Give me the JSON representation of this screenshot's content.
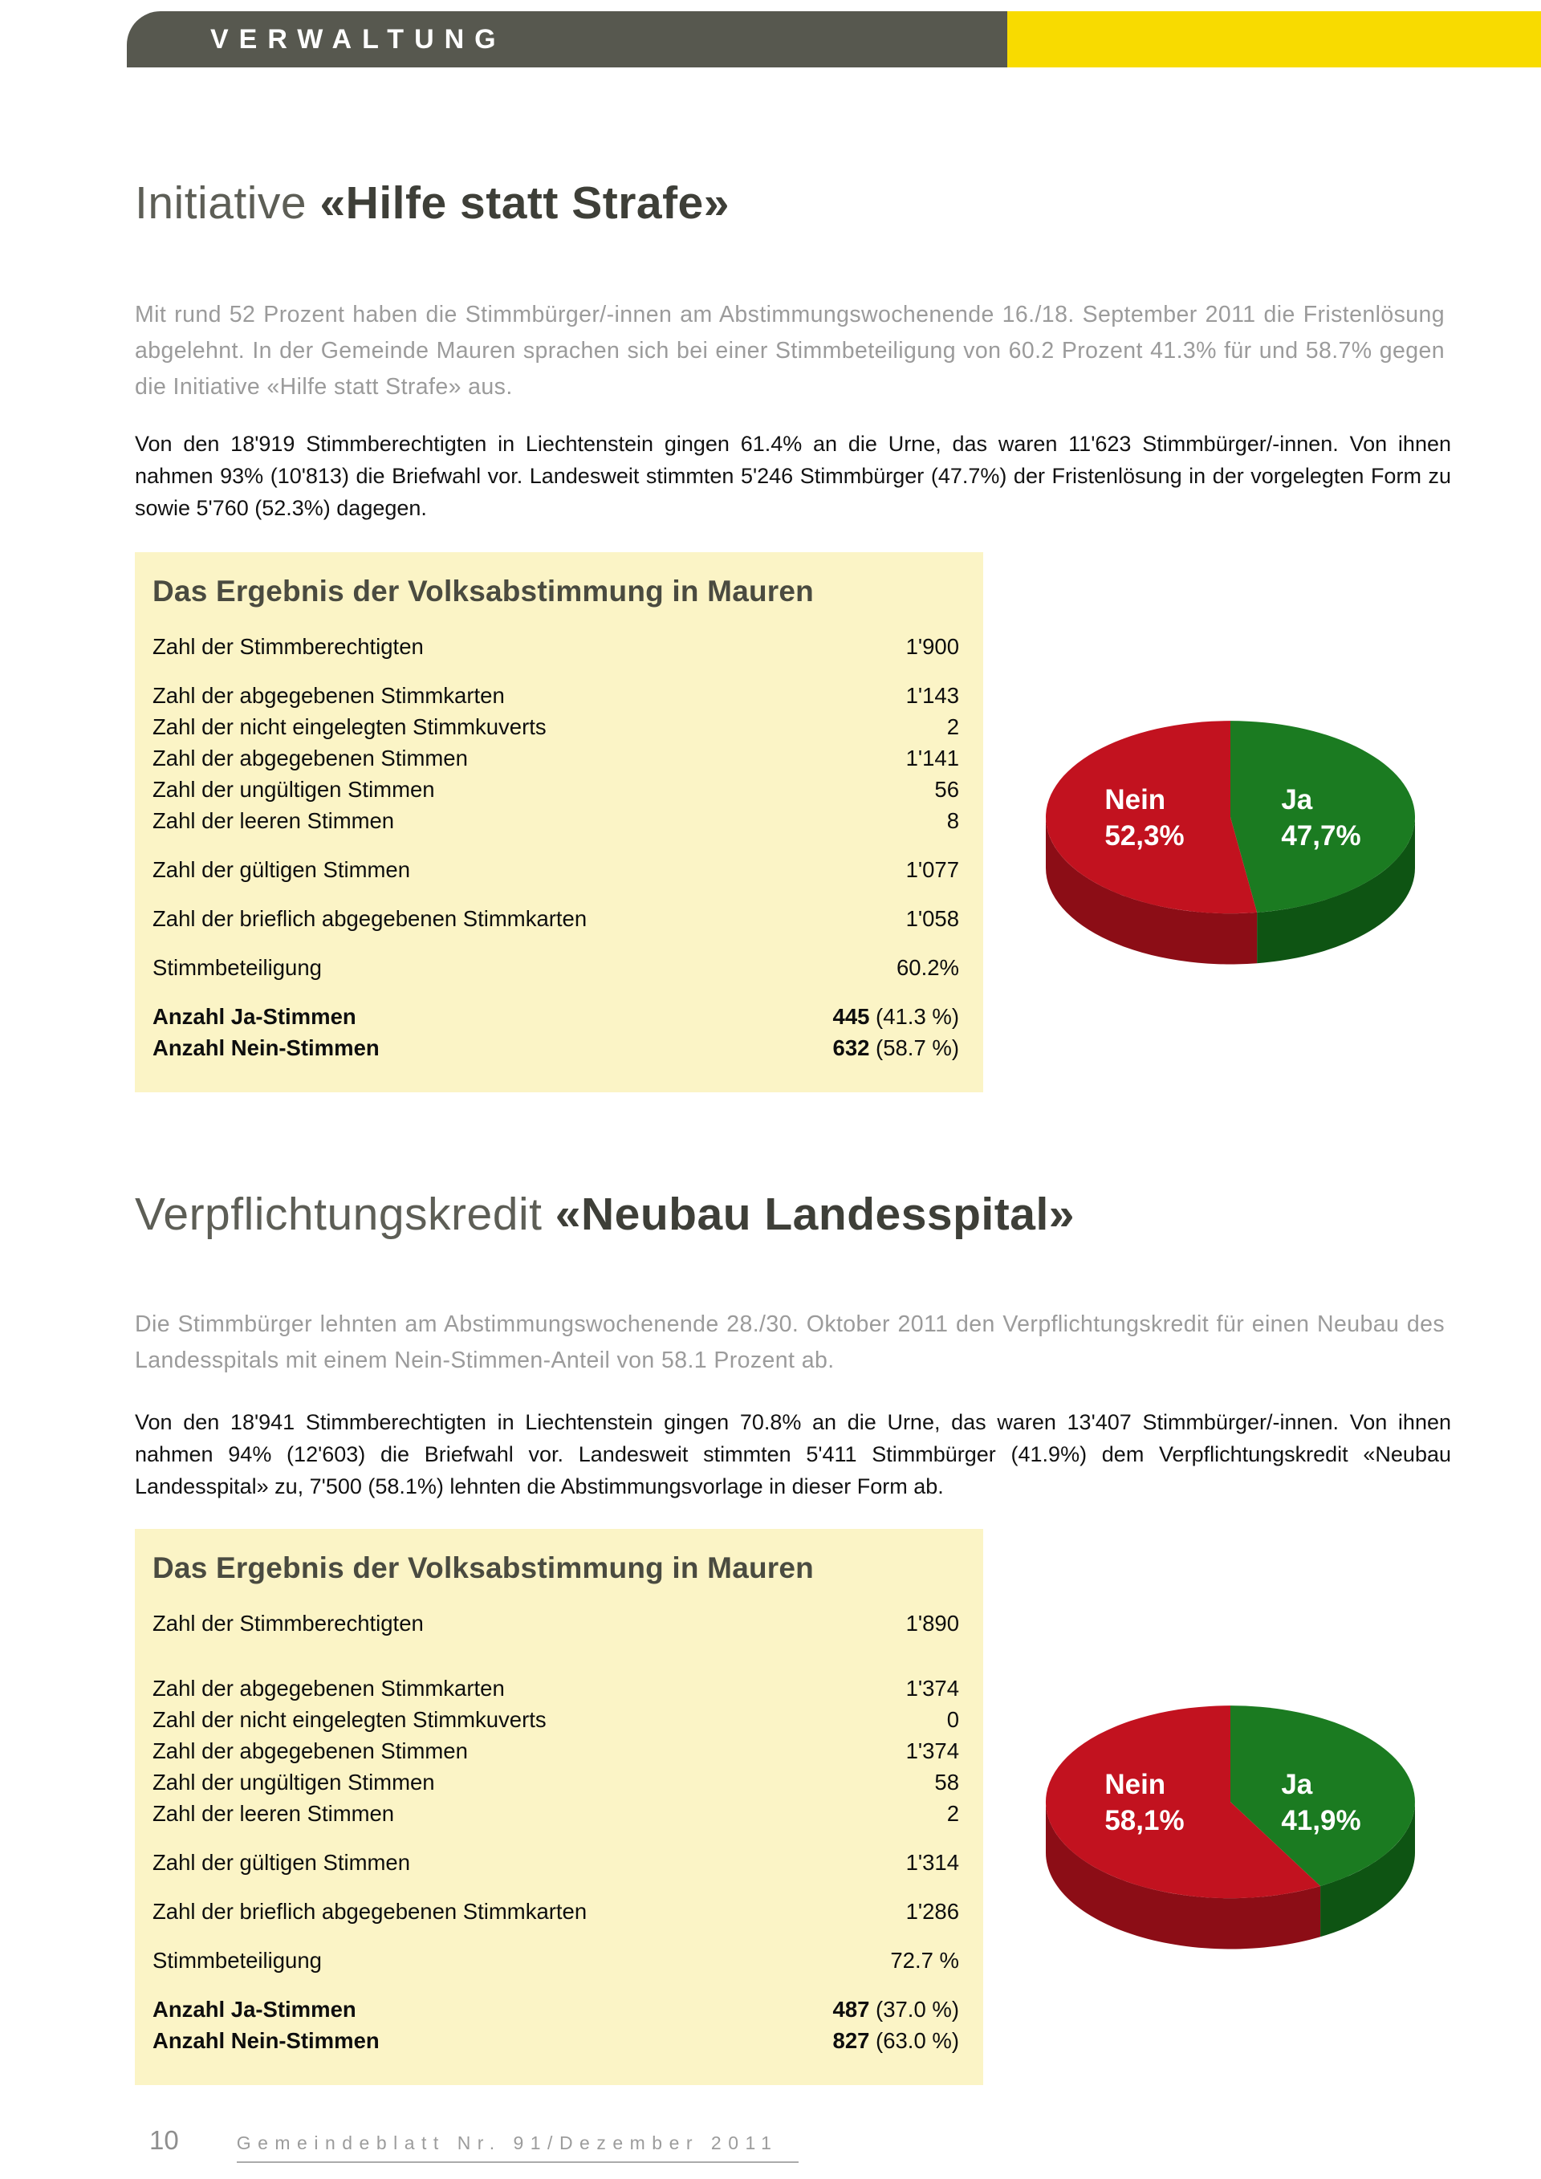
{
  "header": {
    "label": "VERWALTUNG"
  },
  "colors": {
    "header_bar": "#57584F",
    "accent_yellow": "#F8DB00",
    "box_background": "#FBF4C6",
    "pie_red": "#C2121F",
    "pie_green": "#1B7B21"
  },
  "sections": [
    {
      "title_light": "Initiative",
      "title_bold": "«Hilfe statt Strafe»",
      "lead": "Mit rund 52 Prozent haben die Stimmbürger/-innen am Abstimmungswochenende 16./18. September 2011 die Fristenlösung abgelehnt. In der Gemeinde Mauren sprachen sich bei einer Stimmbeteiligung von 60.2 Prozent 41.3% für und 58.7% gegen die Initiative «Hilfe statt Strafe» aus.",
      "body": "Von den 18'919 Stimmberechtigten in Liechtenstein gingen 61.4% an die Urne, das waren 11'623 Stimmbürger/-innen. Von ihnen nahmen 93% (10'813) die Briefwahl vor. Landesweit stimmten 5'246 Stimmbürger (47.7%) der Fristenlösung in der vorgelegten Form zu sowie 5'760 (52.3%) dagegen.",
      "box": {
        "title": "Das Ergebnis der Volksabstimmung in Mauren",
        "rows": [
          {
            "label": "Zahl der Stimmberechtigten",
            "value": "1'900"
          },
          {
            "label": "Zahl der abgegebenen Stimmkarten",
            "value": "1'143",
            "gap": 1
          },
          {
            "label": "Zahl der nicht eingelegten Stimmkuverts",
            "value": "2"
          },
          {
            "label": "Zahl der abgegebenen Stimmen",
            "value": "1'141"
          },
          {
            "label": "Zahl der ungültigen Stimmen",
            "value": "56"
          },
          {
            "label": "Zahl der leeren Stimmen",
            "value": "8"
          },
          {
            "label": "Zahl der gültigen Stimmen",
            "value": "1'077",
            "gap": 1
          },
          {
            "label": "Zahl der brieflich abgegebenen Stimmkarten",
            "value": "1'058",
            "gap": 1
          },
          {
            "label": "Stimmbeteiligung",
            "value": "60.2%",
            "gap": 1
          },
          {
            "label": "Anzahl Ja-Stimmen",
            "value_bold": "445",
            "value_suffix": "(41.3 %)",
            "bold": true,
            "gap": 1
          },
          {
            "label": "Anzahl Nein-Stimmen",
            "value_bold": "632",
            "value_suffix": "(58.7 %)",
            "bold": true
          }
        ]
      }
    },
    {
      "title_light": "Verpflichtungskredit",
      "title_bold": "«Neubau Landesspital»",
      "lead": "Die Stimmbürger lehnten am Abstimmungswochenende 28./30. Oktober 2011 den Verpflichtungskredit für einen Neubau des Landesspitals mit einem Nein-Stimmen-Anteil von 58.1 Prozent ab.",
      "body": "Von den 18'941 Stimmberechtigten in Liechtenstein gingen 70.8% an die Urne, das waren 13'407 Stimmbürger/-innen. Von ihnen nahmen 94% (12'603) die Briefwahl vor. Landesweit stimmten 5'411 Stimmbürger (41.9%) dem Verpflichtungskredit «Neubau Landesspital» zu, 7'500 (58.1%) lehnten die Abstimmungsvorlage in dieser Form ab.",
      "box": {
        "title": "Das Ergebnis der Volksabstimmung in Mauren",
        "rows": [
          {
            "label": "Zahl der Stimmberechtigten",
            "value": "1'890"
          },
          {
            "label": "Zahl der abgegebenen Stimmkarten",
            "value": "1'374",
            "gap": 2
          },
          {
            "label": "Zahl der nicht eingelegten Stimmkuverts",
            "value": "0"
          },
          {
            "label": "Zahl der abgegebenen Stimmen",
            "value": "1'374"
          },
          {
            "label": "Zahl der ungültigen Stimmen",
            "value": "58"
          },
          {
            "label": "Zahl der leeren Stimmen",
            "value": "2"
          },
          {
            "label": "Zahl der gültigen Stimmen",
            "value": "1'314",
            "gap": 1
          },
          {
            "label": "Zahl der brieflich abgegebenen Stimmkarten",
            "value": "1'286",
            "gap": 1
          },
          {
            "label": "Stimmbeteiligung",
            "value": "72.7 %",
            "gap": 1
          },
          {
            "label": "Anzahl Ja-Stimmen",
            "value_bold": "487",
            "value_suffix": "(37.0 %)",
            "bold": true,
            "gap": 1
          },
          {
            "label": "Anzahl Nein-Stimmen",
            "value_bold": "827",
            "value_suffix": "(63.0 %)",
            "bold": true
          }
        ]
      }
    }
  ],
  "chart_data": [
    {
      "type": "pie",
      "style": "3d-pie",
      "start_angle_deg": -90,
      "direction": "clockwise",
      "legend_position": "labels-inside",
      "segments": [
        {
          "label": "Ja",
          "value": 47.7,
          "display": "47,7%",
          "color": "#1B7B21",
          "side_color": "#0E5413",
          "label_side": "right"
        },
        {
          "label": "Nein",
          "value": 52.3,
          "display": "52,3%",
          "color": "#C2121F",
          "side_color": "#8C0D16",
          "label_side": "left"
        }
      ]
    },
    {
      "type": "pie",
      "style": "3d-pie",
      "start_angle_deg": -90,
      "direction": "clockwise",
      "legend_position": "labels-inside",
      "segments": [
        {
          "label": "Ja",
          "value": 41.9,
          "display": "41,9%",
          "color": "#1B7B21",
          "side_color": "#0E5413",
          "label_side": "right"
        },
        {
          "label": "Nein",
          "value": 58.1,
          "display": "58,1%",
          "color": "#C2121F",
          "side_color": "#8C0D16",
          "label_side": "left"
        }
      ]
    }
  ],
  "footer": {
    "page_number": "10",
    "text": "Gemeindeblatt Nr. 91/Dezember 2011"
  }
}
